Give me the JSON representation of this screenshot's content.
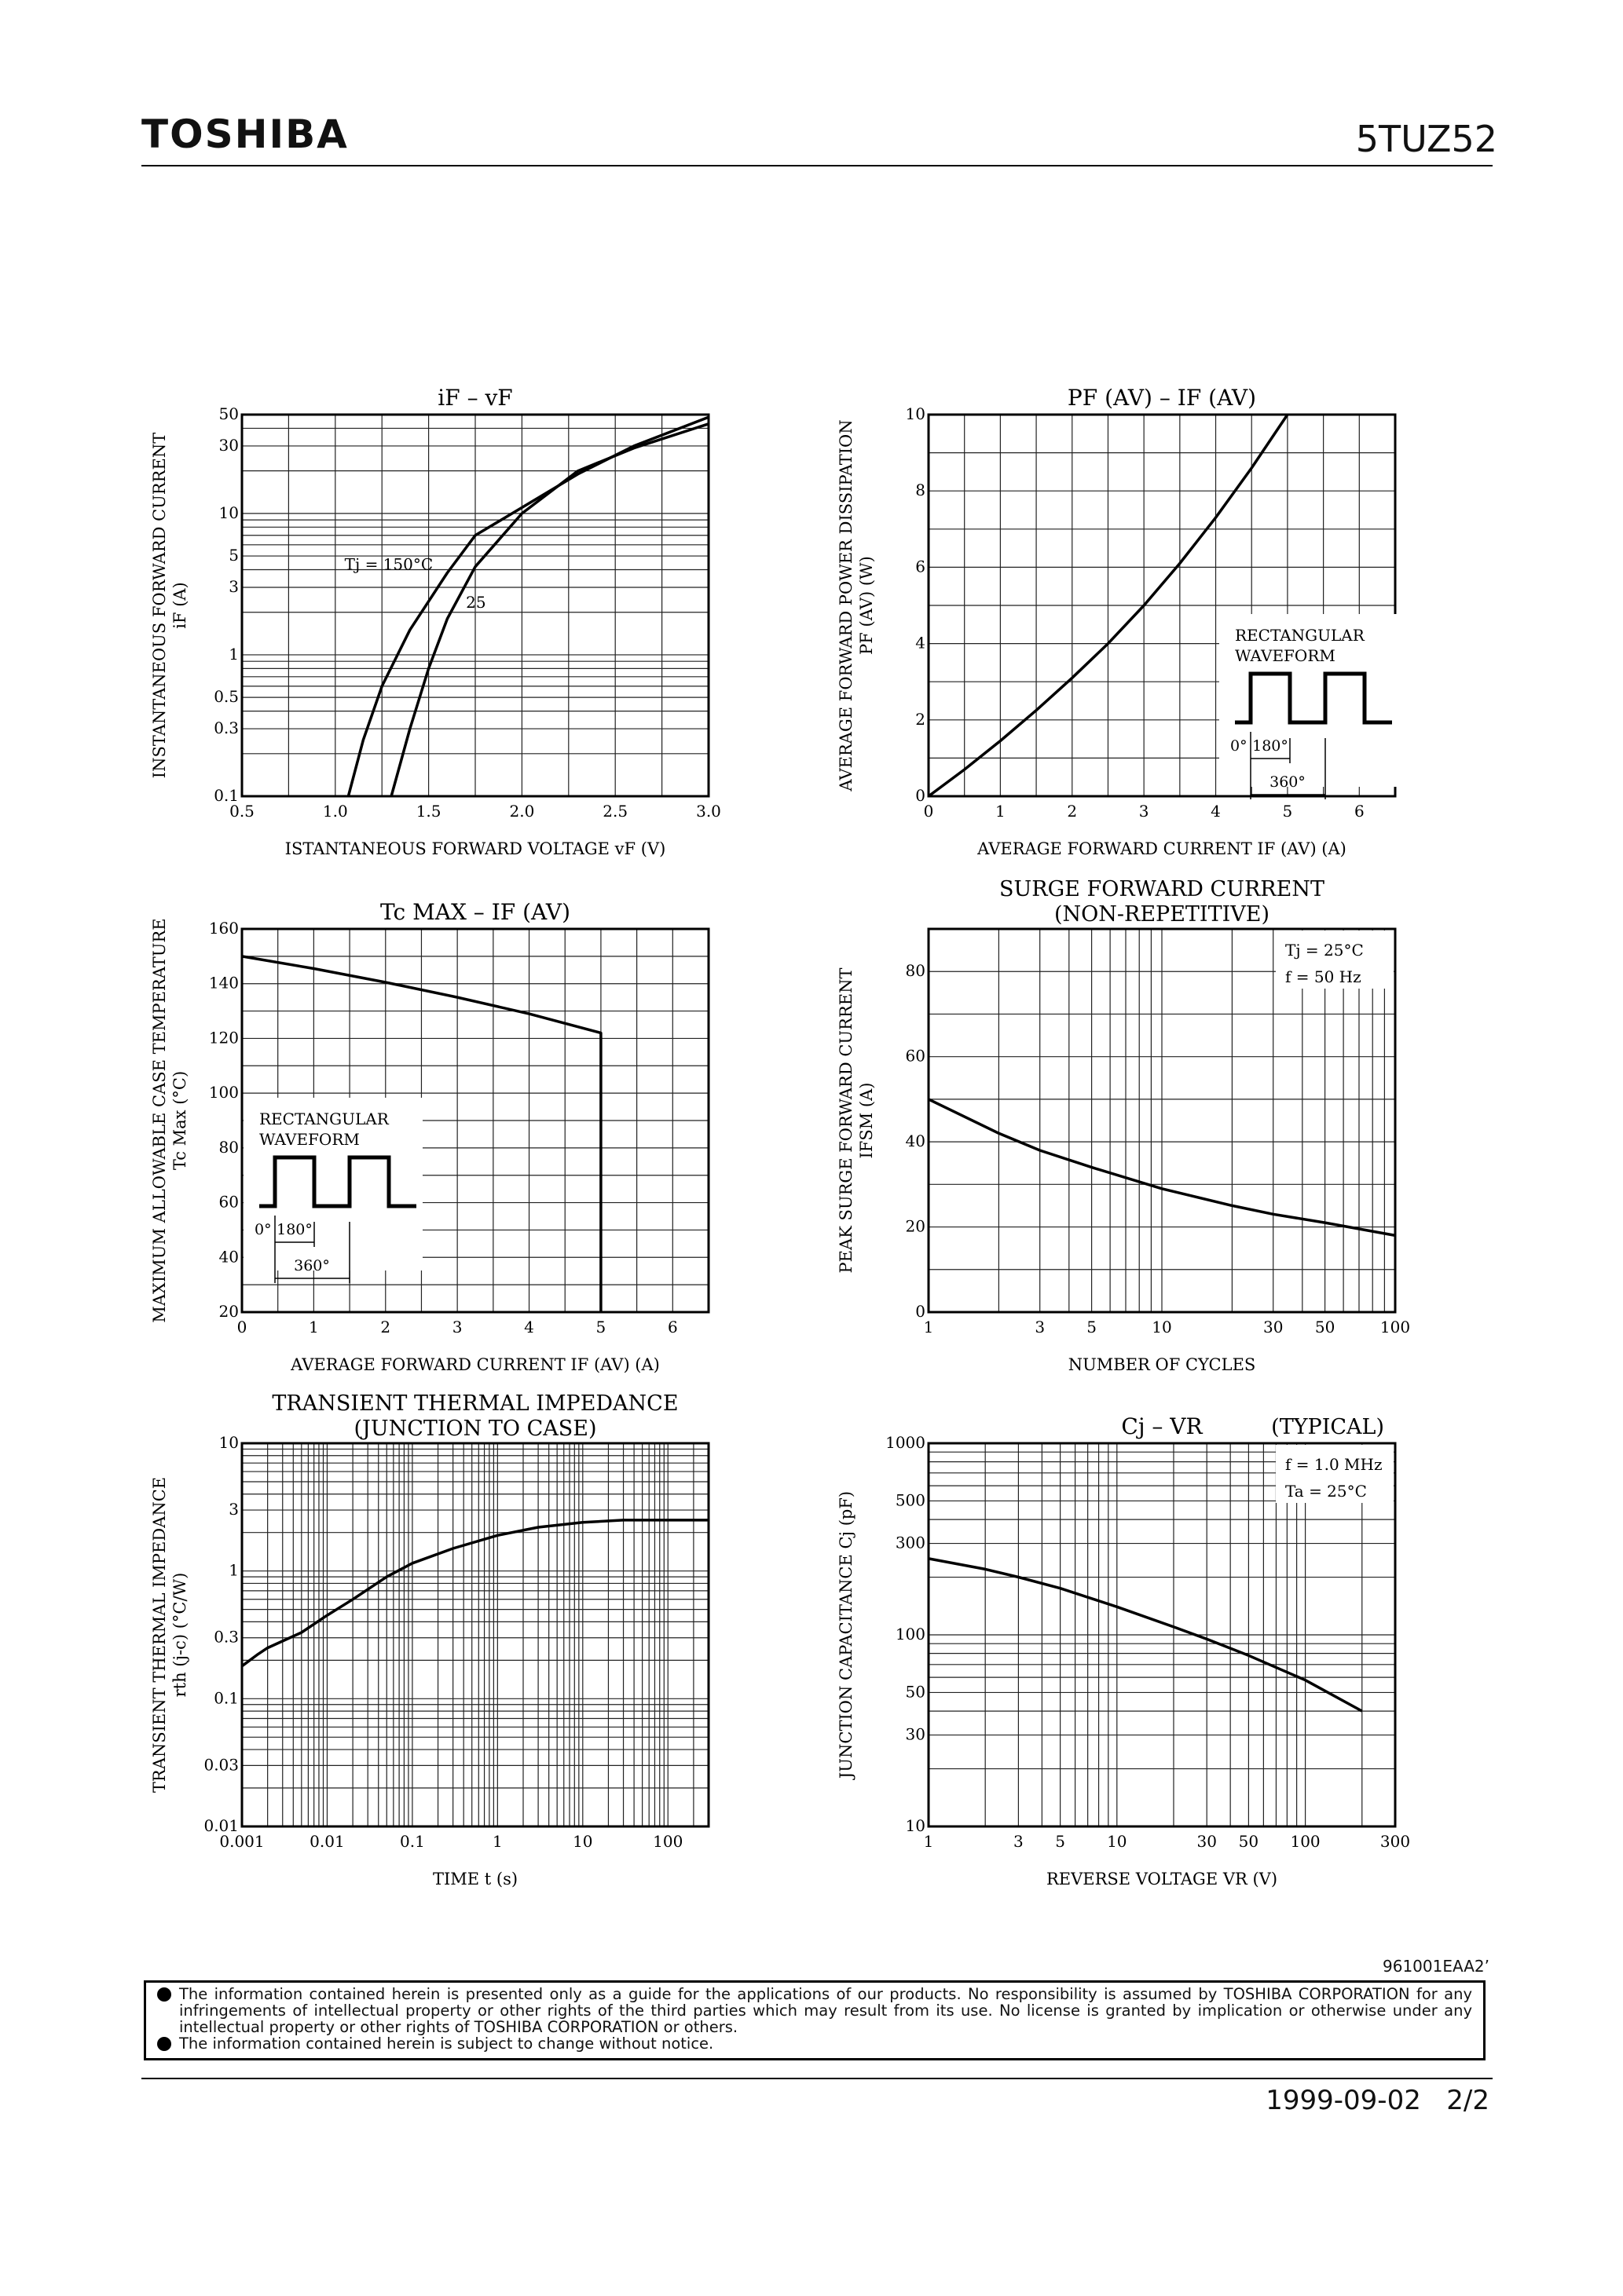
{
  "header": {
    "brand": "TOSHIBA",
    "part_number": "5TUZ52"
  },
  "chart_data": [
    {
      "id": "if-vf",
      "type": "line",
      "xscale": "linear",
      "yscale": "log",
      "title": "iF – vF",
      "xlabel": "ISTANTANEOUS FORWARD VOLTAGE vF (V)",
      "ylabel": "INSTANTANEOUS FORWARD CURRENT",
      "ylabel2": "iF (A)",
      "xlim": [
        0.5,
        3.0
      ],
      "ylim": [
        0.1,
        50
      ],
      "xgrid": [
        0.5,
        0.75,
        1.0,
        1.25,
        1.5,
        1.75,
        2.0,
        2.25,
        2.5,
        2.75,
        3.0
      ],
      "ygrid": [
        0.1,
        0.2,
        0.3,
        0.4,
        0.5,
        0.6,
        0.7,
        0.8,
        0.9,
        1,
        2,
        3,
        4,
        5,
        6,
        7,
        8,
        9,
        10,
        20,
        30,
        40,
        50
      ],
      "xticks": [
        {
          "v": 0.5,
          "t": "0.5"
        },
        {
          "v": 1.0,
          "t": "1.0"
        },
        {
          "v": 1.5,
          "t": "1.5"
        },
        {
          "v": 2.0,
          "t": "2.0"
        },
        {
          "v": 2.5,
          "t": "2.5"
        },
        {
          "v": 3.0,
          "t": "3.0"
        }
      ],
      "yticks": [
        {
          "v": 0.1,
          "t": "0.1"
        },
        {
          "v": 0.3,
          "t": "0.3"
        },
        {
          "v": 0.5,
          "t": "0.5"
        },
        {
          "v": 1,
          "t": "1"
        },
        {
          "v": 3,
          "t": "3"
        },
        {
          "v": 5,
          "t": "5"
        },
        {
          "v": 10,
          "t": "10"
        },
        {
          "v": 30,
          "t": "30"
        },
        {
          "v": 50,
          "t": "50"
        }
      ],
      "series": [
        {
          "name": "Tj = 150°C",
          "x": [
            1.07,
            1.15,
            1.25,
            1.4,
            1.6,
            1.75,
            2.0,
            2.3,
            2.6,
            3.0
          ],
          "y": [
            0.1,
            0.25,
            0.6,
            1.5,
            3.8,
            7.0,
            11,
            19,
            30,
            48
          ]
        },
        {
          "name": "25",
          "x": [
            1.3,
            1.4,
            1.5,
            1.6,
            1.75,
            2.0,
            2.3,
            2.6,
            3.0
          ],
          "y": [
            0.1,
            0.3,
            0.8,
            1.8,
            4.2,
            10,
            20,
            29,
            43
          ]
        }
      ],
      "annotations": [
        {
          "text": "Tj = 150°C",
          "x": 1.05,
          "y": 4.0
        },
        {
          "text": "25",
          "x": 1.7,
          "y": 2.15
        }
      ]
    },
    {
      "id": "pf-if",
      "type": "line",
      "xscale": "linear",
      "yscale": "linear",
      "title": "PF (AV) – IF (AV)",
      "xlabel": "AVERAGE FORWARD CURRENT IF (AV) (A)",
      "ylabel": "AVERAGE FORWARD POWER DISSIPATION",
      "ylabel2": "PF (AV) (W)",
      "xlim": [
        0,
        6.5
      ],
      "ylim": [
        0,
        10
      ],
      "xgrid": [
        0,
        0.5,
        1,
        1.5,
        2,
        2.5,
        3,
        3.5,
        4,
        4.5,
        5,
        5.5,
        6,
        6.5
      ],
      "ygrid": [
        0,
        1,
        2,
        3,
        4,
        5,
        6,
        7,
        8,
        9,
        10
      ],
      "xticks": [
        {
          "v": 0,
          "t": "0"
        },
        {
          "v": 1,
          "t": "1"
        },
        {
          "v": 2,
          "t": "2"
        },
        {
          "v": 3,
          "t": "3"
        },
        {
          "v": 4,
          "t": "4"
        },
        {
          "v": 5,
          "t": "5"
        },
        {
          "v": 6,
          "t": "6"
        }
      ],
      "yticks": [
        {
          "v": 0,
          "t": "0"
        },
        {
          "v": 2,
          "t": "2"
        },
        {
          "v": 4,
          "t": "4"
        },
        {
          "v": 6,
          "t": "6"
        },
        {
          "v": 8,
          "t": "8"
        },
        {
          "v": 10,
          "t": "10"
        }
      ],
      "series": [
        {
          "name": "PF",
          "x": [
            0,
            0.5,
            1,
            1.5,
            2,
            2.5,
            3,
            3.5,
            4,
            4.5,
            5.0
          ],
          "y": [
            0,
            0.7,
            1.45,
            2.25,
            3.1,
            4.0,
            5.0,
            6.1,
            7.3,
            8.6,
            10
          ]
        }
      ],
      "inset": {
        "text1": "RECTANGULAR",
        "text2": "WAVEFORM",
        "deg0": "0°",
        "deg180": "180°",
        "deg360": "360°"
      }
    },
    {
      "id": "tc-if",
      "type": "line",
      "xscale": "linear",
      "yscale": "linear",
      "title": "Tc MAX – IF (AV)",
      "xlabel": "AVERAGE FORWARD CURRENT IF (AV) (A)",
      "ylabel": "MAXIMUM ALLOWABLE CASE TEMPERATURE",
      "ylabel2": "Tc Max (°C)",
      "xlim": [
        0,
        6.5
      ],
      "ylim": [
        20,
        160
      ],
      "xgrid": [
        0,
        0.5,
        1,
        1.5,
        2,
        2.5,
        3,
        3.5,
        4,
        4.5,
        5,
        5.5,
        6,
        6.5
      ],
      "ygrid": [
        20,
        30,
        40,
        50,
        60,
        70,
        80,
        90,
        100,
        110,
        120,
        130,
        140,
        150,
        160
      ],
      "xticks": [
        {
          "v": 0,
          "t": "0"
        },
        {
          "v": 1,
          "t": "1"
        },
        {
          "v": 2,
          "t": "2"
        },
        {
          "v": 3,
          "t": "3"
        },
        {
          "v": 4,
          "t": "4"
        },
        {
          "v": 5,
          "t": "5"
        },
        {
          "v": 6,
          "t": "6"
        }
      ],
      "yticks": [
        {
          "v": 20,
          "t": "20"
        },
        {
          "v": 40,
          "t": "40"
        },
        {
          "v": 60,
          "t": "60"
        },
        {
          "v": 80,
          "t": "80"
        },
        {
          "v": 100,
          "t": "100"
        },
        {
          "v": 120,
          "t": "120"
        },
        {
          "v": 140,
          "t": "140"
        },
        {
          "v": 160,
          "t": "160"
        }
      ],
      "series": [
        {
          "name": "Tc",
          "x": [
            0,
            1,
            2,
            3,
            4,
            5.0,
            5.0
          ],
          "y": [
            150,
            145.5,
            140.5,
            135,
            129,
            122,
            20
          ]
        }
      ],
      "inset": {
        "text1": "RECTANGULAR",
        "text2": "WAVEFORM",
        "deg0": "0°",
        "deg180": "180°",
        "deg360": "360°"
      }
    },
    {
      "id": "surge",
      "type": "line",
      "xscale": "log",
      "yscale": "linear",
      "title": "SURGE FORWARD CURRENT",
      "subtitle": "(NON-REPETITIVE)",
      "xlabel": "NUMBER OF CYCLES",
      "ylabel": "PEAK SURGE FORWARD CURRENT",
      "ylabel2": "IFSM (A)",
      "xlim": [
        1,
        100
      ],
      "ylim": [
        0,
        90
      ],
      "xgrid": [
        1,
        2,
        3,
        4,
        5,
        6,
        7,
        8,
        9,
        10,
        20,
        30,
        40,
        50,
        60,
        70,
        80,
        90,
        100
      ],
      "ygrid": [
        0,
        10,
        20,
        30,
        40,
        50,
        60,
        70,
        80,
        90
      ],
      "xticks": [
        {
          "v": 1,
          "t": "1"
        },
        {
          "v": 3,
          "t": "3"
        },
        {
          "v": 5,
          "t": "5"
        },
        {
          "v": 10,
          "t": "10"
        },
        {
          "v": 30,
          "t": "30"
        },
        {
          "v": 50,
          "t": "50"
        },
        {
          "v": 100,
          "t": "100"
        }
      ],
      "yticks": [
        {
          "v": 0,
          "t": "0"
        },
        {
          "v": 20,
          "t": "20"
        },
        {
          "v": 40,
          "t": "40"
        },
        {
          "v": 60,
          "t": "60"
        },
        {
          "v": 80,
          "t": "80"
        }
      ],
      "series": [
        {
          "name": "IFSM",
          "x": [
            1,
            2,
            3,
            5,
            10,
            20,
            30,
            50,
            100
          ],
          "y": [
            50,
            42,
            38,
            34,
            29,
            25,
            23,
            21,
            18
          ]
        }
      ],
      "legend": [
        "Tj = 25°C",
        "f = 50 Hz"
      ]
    },
    {
      "id": "rth",
      "type": "line",
      "xscale": "log",
      "yscale": "log",
      "title": "TRANSIENT THERMAL IMPEDANCE",
      "subtitle": "(JUNCTION TO CASE)",
      "xlabel": "TIME t (s)",
      "ylabel": "TRANSIENT THERMAL IMPEDANCE",
      "ylabel2": "rth (j-c) (°C/W)",
      "xlim": [
        0.001,
        300
      ],
      "ylim": [
        0.01,
        10
      ],
      "xgrid": [
        0.001,
        0.002,
        0.003,
        0.004,
        0.005,
        0.006,
        0.007,
        0.008,
        0.009,
        0.01,
        0.02,
        0.03,
        0.04,
        0.05,
        0.06,
        0.07,
        0.08,
        0.09,
        0.1,
        0.2,
        0.3,
        0.4,
        0.5,
        0.6,
        0.7,
        0.8,
        0.9,
        1,
        2,
        3,
        4,
        5,
        6,
        7,
        8,
        9,
        10,
        20,
        30,
        40,
        50,
        60,
        70,
        80,
        90,
        100,
        200,
        300
      ],
      "ygrid": [
        0.01,
        0.02,
        0.03,
        0.04,
        0.05,
        0.06,
        0.07,
        0.08,
        0.09,
        0.1,
        0.2,
        0.3,
        0.4,
        0.5,
        0.6,
        0.7,
        0.8,
        0.9,
        1,
        2,
        3,
        4,
        5,
        6,
        7,
        8,
        9,
        10
      ],
      "xticks": [
        {
          "v": 0.001,
          "t": "0.001"
        },
        {
          "v": 0.01,
          "t": "0.01"
        },
        {
          "v": 0.1,
          "t": "0.1"
        },
        {
          "v": 1,
          "t": "1"
        },
        {
          "v": 10,
          "t": "10"
        },
        {
          "v": 100,
          "t": "100"
        }
      ],
      "yticks": [
        {
          "v": 0.01,
          "t": "0.01"
        },
        {
          "v": 0.03,
          "t": "0.03"
        },
        {
          "v": 0.1,
          "t": "0.1"
        },
        {
          "v": 0.3,
          "t": "0.3"
        },
        {
          "v": 1,
          "t": "1"
        },
        {
          "v": 3,
          "t": "3"
        },
        {
          "v": 10,
          "t": "10"
        }
      ],
      "series": [
        {
          "name": "rth",
          "x": [
            0.001,
            0.0015,
            0.002,
            0.005,
            0.01,
            0.02,
            0.05,
            0.1,
            0.3,
            1,
            3,
            10,
            30,
            100,
            300
          ],
          "y": [
            0.18,
            0.22,
            0.25,
            0.33,
            0.45,
            0.6,
            0.9,
            1.15,
            1.5,
            1.9,
            2.2,
            2.4,
            2.5,
            2.5,
            2.5
          ]
        }
      ]
    },
    {
      "id": "cj-vr",
      "type": "line",
      "xscale": "log",
      "yscale": "log",
      "title": "Cj – VR",
      "title_note": "(TYPICAL)",
      "xlabel": "REVERSE VOLTAGE VR (V)",
      "ylabel": "JUNCTION CAPACITANCE Cj (pF)",
      "ylabel2": "",
      "xlim": [
        1,
        300
      ],
      "ylim": [
        10,
        1000
      ],
      "xgrid": [
        1,
        2,
        3,
        4,
        5,
        6,
        7,
        8,
        9,
        10,
        20,
        30,
        40,
        50,
        60,
        70,
        80,
        90,
        100,
        200,
        300
      ],
      "ygrid": [
        10,
        20,
        30,
        40,
        50,
        60,
        70,
        80,
        90,
        100,
        200,
        300,
        400,
        500,
        600,
        700,
        800,
        900,
        1000
      ],
      "xticks": [
        {
          "v": 1,
          "t": "1"
        },
        {
          "v": 3,
          "t": "3"
        },
        {
          "v": 5,
          "t": "5"
        },
        {
          "v": 10,
          "t": "10"
        },
        {
          "v": 30,
          "t": "30"
        },
        {
          "v": 50,
          "t": "50"
        },
        {
          "v": 100,
          "t": "100"
        },
        {
          "v": 300,
          "t": "300"
        }
      ],
      "yticks": [
        {
          "v": 10,
          "t": "10"
        },
        {
          "v": 30,
          "t": "30"
        },
        {
          "v": 50,
          "t": "50"
        },
        {
          "v": 100,
          "t": "100"
        },
        {
          "v": 300,
          "t": "300"
        },
        {
          "v": 500,
          "t": "500"
        },
        {
          "v": 1000,
          "t": "1000"
        }
      ],
      "series": [
        {
          "name": "Cj",
          "x": [
            1,
            2,
            3,
            5,
            10,
            20,
            30,
            50,
            100,
            200
          ],
          "y": [
            250,
            220,
            200,
            175,
            140,
            110,
            95,
            78,
            58,
            40
          ]
        }
      ],
      "legend": [
        "f = 1.0 MHz",
        "Ta = 25°C"
      ]
    }
  ],
  "footer": {
    "doc_number": "961001EAA2’",
    "disclaimer1": "The information contained herein is presented only as a guide for the applications of our products. No responsibility is assumed by TOSHIBA CORPORATION for any infringements of intellectual property or other rights of the third parties which may result from its use. No license is granted by implication or otherwise under any intellectual property or other rights of TOSHIBA CORPORATION or others.",
    "disclaimer2": "The information contained herein is subject to change without notice.",
    "date": "1999-09-02",
    "page": "2/2"
  }
}
